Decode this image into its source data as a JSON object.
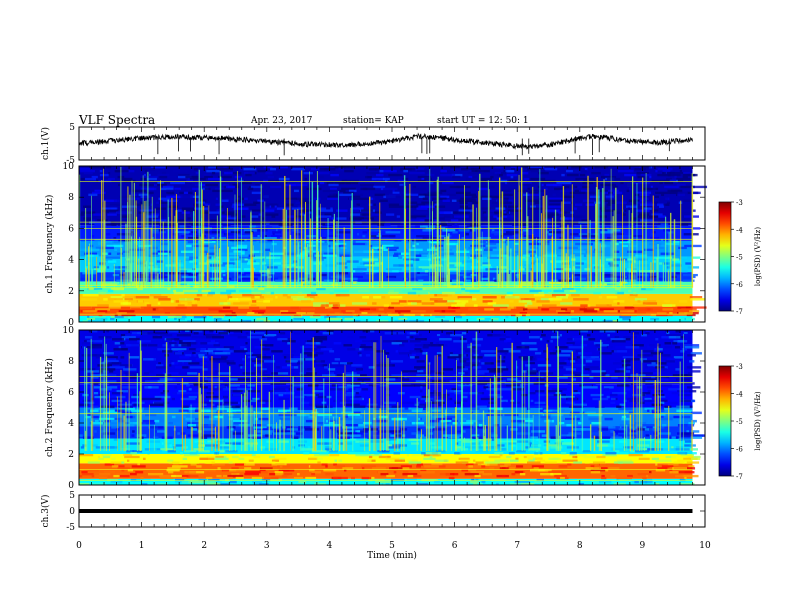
{
  "header": {
    "title": "VLF Spectra",
    "date": "Apr. 23, 2017",
    "station": "station= KAP",
    "start": "start  UT =   12: 50: 1"
  },
  "chart_data": [
    {
      "type": "line",
      "panel": "ch1-waveform",
      "ylabel": "ch.1(V)",
      "ylim": [
        -5,
        5
      ],
      "yticks": [
        "5",
        "-5"
      ],
      "xlim": [
        0,
        10
      ],
      "x_end": 9.8,
      "series": [
        {
          "values": [
            0,
            0.3,
            0.6,
            1.0,
            1.3,
            1.6,
            1.8,
            1.9,
            2.0,
            1.9,
            1.8,
            1.6,
            1.4,
            1.2,
            0.9,
            0.6,
            0.3,
            0.0,
            -0.2,
            -0.3,
            -0.4,
            -0.5,
            -0.3,
            -0.1,
            0.3,
            0.8,
            1.5,
            2.2,
            2.0,
            1.6,
            1.2,
            0.8,
            0.4,
            0.0,
            -0.4,
            -0.8,
            -1.0,
            -0.6,
            0.0,
            0.8,
            1.6,
            2.1,
            1.8,
            1.3,
            0.8,
            0.5,
            0.3,
            0.4,
            0.8,
            1.4
          ]
        }
      ]
    },
    {
      "type": "heatmap",
      "panel": "ch1-spectrogram",
      "ylabel": "ch.1 Frequency (kHz)",
      "ylim": [
        0,
        10
      ],
      "yticks": [
        "0",
        "2",
        "4",
        "6",
        "8",
        "10"
      ],
      "colorbar": {
        "label": "log(PSD) (V²/Hz)",
        "range": [
          -7,
          -3
        ],
        "ticks": [
          "-3",
          "-4",
          "-5",
          "-6",
          "-7"
        ]
      },
      "bands": [
        {
          "kHz": [
            0.0,
            0.4
          ],
          "level": -5.5
        },
        {
          "kHz": [
            0.4,
            1.0
          ],
          "level": -3.8
        },
        {
          "kHz": [
            1.0,
            1.8
          ],
          "level": -4.3
        },
        {
          "kHz": [
            1.8,
            2.6
          ],
          "level": -5.2
        },
        {
          "kHz": [
            2.6,
            3.2
          ],
          "level": -6.3
        },
        {
          "kHz": [
            3.2,
            4.2
          ],
          "level": -5.7
        },
        {
          "kHz": [
            4.2,
            5.2
          ],
          "level": -5.9
        },
        {
          "kHz": [
            5.2,
            6.2
          ],
          "level": -6.4
        },
        {
          "kHz": [
            6.2,
            10.0
          ],
          "level": -6.8
        }
      ],
      "lines_kHz": [
        0.5,
        2.2,
        2.35,
        5.3,
        6.0,
        6.4,
        9.0
      ],
      "bursts": 260
    },
    {
      "type": "heatmap",
      "panel": "ch2-spectrogram",
      "ylabel": "ch.2 Frequency (kHz)",
      "ylim": [
        0,
        10
      ],
      "yticks": [
        "0",
        "2",
        "4",
        "6",
        "8",
        "10"
      ],
      "colorbar": {
        "label": "log(PSD) (V²/Hz)",
        "range": [
          -7,
          -3
        ],
        "ticks": [
          "-3",
          "-4",
          "-5",
          "-6",
          "-7"
        ]
      },
      "bands": [
        {
          "kHz": [
            0.0,
            0.4
          ],
          "level": -5.5
        },
        {
          "kHz": [
            0.4,
            1.4
          ],
          "level": -3.9
        },
        {
          "kHz": [
            1.4,
            2.0
          ],
          "level": -4.5
        },
        {
          "kHz": [
            2.0,
            3.0
          ],
          "level": -5.6
        },
        {
          "kHz": [
            3.0,
            3.8
          ],
          "level": -6.3
        },
        {
          "kHz": [
            3.8,
            5.0
          ],
          "level": -6.0
        },
        {
          "kHz": [
            5.0,
            6.5
          ],
          "level": -6.5
        },
        {
          "kHz": [
            6.5,
            10.0
          ],
          "level": -6.6
        }
      ],
      "lines_kHz": [
        0.3,
        1.0,
        4.6,
        6.6,
        7.0
      ],
      "bursts": 180
    },
    {
      "type": "line",
      "panel": "ch3-waveform",
      "ylabel": "ch.3(V)",
      "ylim": [
        -5,
        5
      ],
      "yticks": [
        "5",
        "0",
        "-5"
      ],
      "xlim": [
        0,
        10
      ],
      "x_end": 9.8,
      "series": [
        {
          "values": [
            0,
            0
          ]
        }
      ],
      "xlabel": "Time  (min)",
      "xticks": [
        "0",
        "1",
        "2",
        "3",
        "4",
        "5",
        "6",
        "7",
        "8",
        "9",
        "10"
      ]
    }
  ]
}
